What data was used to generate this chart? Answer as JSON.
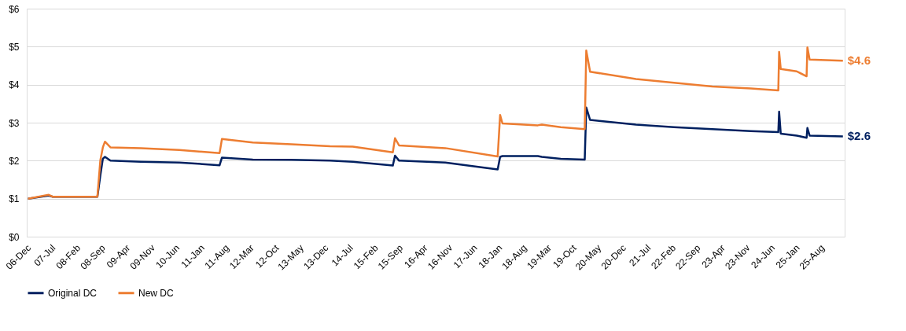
{
  "chart_data": {
    "type": "line",
    "x": [
      "2006-12-01",
      "2007-05-28",
      "2007-07-01",
      "2008-07-19",
      "2008-08-13",
      "2008-09-04",
      "2008-09-22",
      "2008-11-08",
      "2009-07-28",
      "2010-06-22",
      "2011-06-04",
      "2011-06-24",
      "2012-03-15",
      "2013-02-10",
      "2014-01-07",
      "2014-07-22",
      "2015-07-01",
      "2015-07-20",
      "2015-08-24",
      "2016-09-24",
      "2017-12-18",
      "2018-01-08",
      "2018-01-28",
      "2018-11-28",
      "2019-01-01",
      "2019-06-13",
      "2020-01-05",
      "2020-01-18",
      "2020-02-20",
      "2021-03-20",
      "2022-02-10",
      "2023-01-05",
      "2023-12-01",
      "2024-07-25",
      "2024-08-01",
      "2024-08-15",
      "2024-12-30",
      "2025-03-25",
      "2025-04-01",
      "2025-04-20",
      "2026-01-31"
    ],
    "series": [
      {
        "name": "Original DC",
        "color": "#002060",
        "values": [
          1.0,
          1.08,
          1.05,
          1.05,
          1.6,
          2.05,
          2.1,
          2.0,
          1.97,
          1.95,
          1.88,
          2.08,
          2.03,
          2.02,
          2.0,
          1.97,
          1.87,
          2.13,
          2.0,
          1.95,
          1.77,
          2.1,
          2.12,
          2.12,
          2.1,
          2.05,
          2.03,
          3.4,
          3.07,
          2.95,
          2.88,
          2.83,
          2.78,
          2.75,
          3.29,
          2.71,
          2.66,
          2.6,
          2.86,
          2.66,
          2.64
        ]
      },
      {
        "name": "New DC",
        "color": "#ed7d31",
        "values": [
          1.0,
          1.1,
          1.05,
          1.05,
          2.0,
          2.35,
          2.5,
          2.35,
          2.33,
          2.28,
          2.2,
          2.57,
          2.48,
          2.43,
          2.38,
          2.37,
          2.22,
          2.59,
          2.4,
          2.33,
          2.11,
          3.2,
          2.98,
          2.93,
          2.95,
          2.88,
          2.83,
          4.9,
          4.34,
          4.15,
          4.05,
          3.95,
          3.9,
          3.85,
          4.86,
          4.41,
          4.35,
          4.22,
          4.98,
          4.66,
          4.63
        ]
      }
    ],
    "xlim": [
      "2006-11-20",
      "2026-02-15"
    ],
    "xticks": [
      {
        "value": "2006-12-01",
        "label": "06-Dec"
      },
      {
        "value": "2007-07-01",
        "label": "07-Jul"
      },
      {
        "value": "2008-02-01",
        "label": "08-Feb"
      },
      {
        "value": "2008-09-01",
        "label": "08-Sep"
      },
      {
        "value": "2009-04-01",
        "label": "09-Apr"
      },
      {
        "value": "2009-11-01",
        "label": "09-Nov"
      },
      {
        "value": "2010-06-01",
        "label": "10-Jun"
      },
      {
        "value": "2011-01-01",
        "label": "11-Jan"
      },
      {
        "value": "2011-08-01",
        "label": "11-Aug"
      },
      {
        "value": "2012-03-01",
        "label": "12-Mar"
      },
      {
        "value": "2012-10-01",
        "label": "12-Oct"
      },
      {
        "value": "2013-05-01",
        "label": "13-May"
      },
      {
        "value": "2013-12-01",
        "label": "13-Dec"
      },
      {
        "value": "2014-07-01",
        "label": "14-Jul"
      },
      {
        "value": "2015-02-01",
        "label": "15-Feb"
      },
      {
        "value": "2015-09-01",
        "label": "15-Sep"
      },
      {
        "value": "2016-04-01",
        "label": "16-Apr"
      },
      {
        "value": "2016-11-01",
        "label": "16-Nov"
      },
      {
        "value": "2017-06-01",
        "label": "17-Jun"
      },
      {
        "value": "2018-01-01",
        "label": "18-Jan"
      },
      {
        "value": "2018-08-01",
        "label": "18-Aug"
      },
      {
        "value": "2019-03-01",
        "label": "19-Mar"
      },
      {
        "value": "2019-10-01",
        "label": "19-Oct"
      },
      {
        "value": "2020-05-01",
        "label": "20-May"
      },
      {
        "value": "2020-12-01",
        "label": "20-Dec"
      },
      {
        "value": "2021-07-01",
        "label": "21-Jul"
      },
      {
        "value": "2022-02-01",
        "label": "22-Feb"
      },
      {
        "value": "2022-09-01",
        "label": "22-Sep"
      },
      {
        "value": "2023-04-01",
        "label": "23-Apr"
      },
      {
        "value": "2023-11-01",
        "label": "23-Nov"
      },
      {
        "value": "2024-06-01",
        "label": "24-Jun"
      },
      {
        "value": "2025-01-01",
        "label": "25-Jan"
      },
      {
        "value": "2025-08-01",
        "label": "25-Aug"
      }
    ],
    "ylim": [
      0,
      6
    ],
    "yticks": [
      {
        "value": 0,
        "label": "$0"
      },
      {
        "value": 1,
        "label": "$1"
      },
      {
        "value": 2,
        "label": "$2"
      },
      {
        "value": 3,
        "label": "$3"
      },
      {
        "value": 4,
        "label": "$4"
      },
      {
        "value": 5,
        "label": "$5"
      },
      {
        "value": 6,
        "label": "$6"
      }
    ],
    "annotations": [
      {
        "text": "$4.6",
        "x": "2026-01-31",
        "y": 4.63
      },
      {
        "text": "$2.6",
        "x": "2026-01-31",
        "y": 2.64
      }
    ],
    "grid": "y",
    "legend": "bottom",
    "marker": "none",
    "line_style": "solid"
  }
}
